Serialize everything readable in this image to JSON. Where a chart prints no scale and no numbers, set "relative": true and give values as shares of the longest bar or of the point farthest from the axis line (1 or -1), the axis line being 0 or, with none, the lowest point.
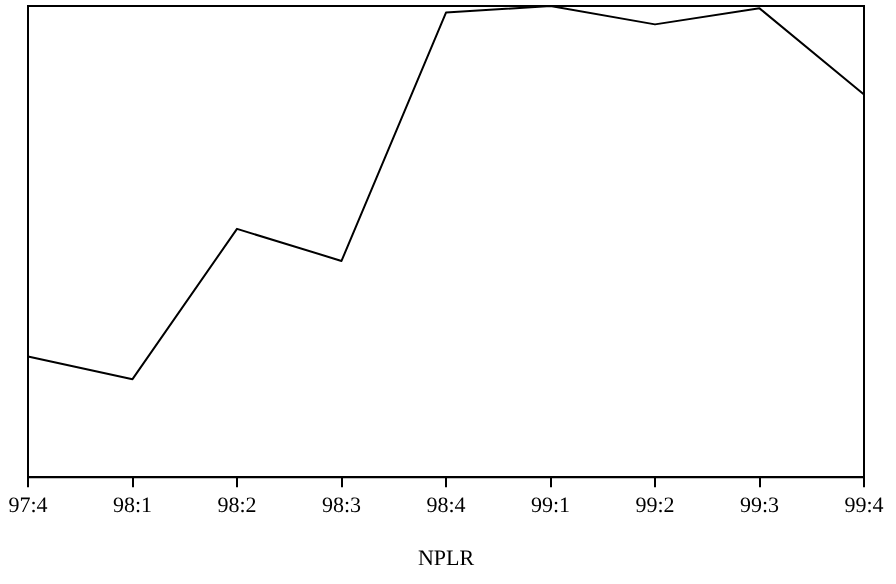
{
  "chart_data": {
    "type": "line",
    "xlabel": "NPLR",
    "relative": true,
    "grid": false,
    "legend": false,
    "marker": "none",
    "categories": [
      "97:4",
      "98:1",
      "98:2",
      "98:3",
      "98:4",
      "99:1",
      "99:2",
      "99:3",
      "99:4"
    ],
    "series": [
      {
        "color": "#000000",
        "values": [
          0.256,
          0.208,
          0.527,
          0.459,
          0.986,
          1,
          0.961,
          0.995,
          0.812
        ]
      }
    ]
  }
}
